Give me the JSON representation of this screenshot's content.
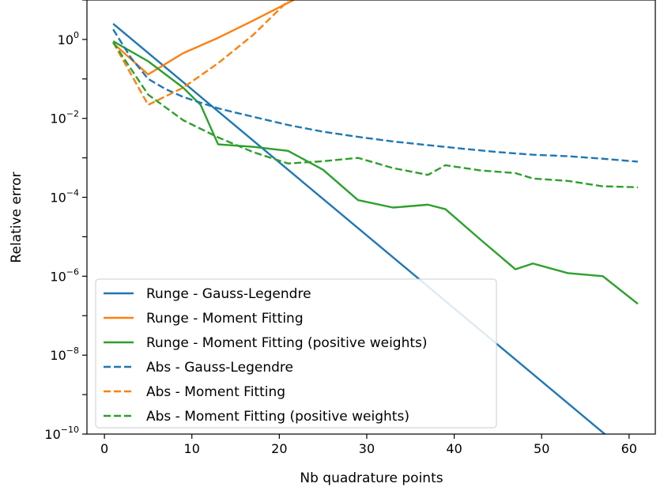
{
  "chart_data": {
    "type": "line",
    "title": "",
    "xlabel": "Nb quadrature points",
    "ylabel": "Relative error",
    "xlim": [
      -2,
      63
    ],
    "ylim_log10": [
      -10,
      1
    ],
    "yscale": "log",
    "xticks": [
      0,
      10,
      20,
      30,
      40,
      50,
      60
    ],
    "yticks_exponents": [
      -10,
      -8,
      -6,
      -4,
      -2,
      0
    ],
    "ytick_base": "10",
    "grid": false,
    "legend_position": "lower-left",
    "series": [
      {
        "name": "Runge - Gauss-Legendre",
        "color": "#1f77b4",
        "dash": "solid",
        "x": [
          1,
          61
        ],
        "y": [
          2.5,
          2e-11
        ]
      },
      {
        "name": "Runge - Moment Fitting",
        "color": "#ff7f0e",
        "dash": "solid",
        "x": [
          1,
          5,
          9,
          13,
          17,
          21,
          22
        ],
        "y": [
          0.8,
          0.13,
          0.45,
          1.1,
          3.0,
          8.5,
          11
        ]
      },
      {
        "name": "Runge - Moment Fitting (positive weights)",
        "color": "#2ca02c",
        "dash": "solid",
        "x": [
          1,
          5,
          9,
          11,
          13,
          17,
          21,
          25,
          29,
          33,
          37,
          39,
          43,
          47,
          49,
          53,
          57,
          61
        ],
        "y": [
          0.9,
          0.28,
          0.06,
          0.022,
          0.0022,
          0.0019,
          0.0015,
          0.0005,
          8.5e-05,
          5.5e-05,
          6.5e-05,
          5e-05,
          8.5e-06,
          1.5e-06,
          2.1e-06,
          1.2e-06,
          1e-06,
          2e-07
        ]
      },
      {
        "name": "Abs - Gauss-Legendre",
        "color": "#1f77b4",
        "dash": "dashed",
        "x": [
          1,
          3,
          5,
          7,
          9,
          11,
          13,
          15,
          17,
          21,
          25,
          29,
          33,
          37,
          41,
          45,
          49,
          53,
          57,
          61
        ],
        "y": [
          1.8,
          0.35,
          0.1,
          0.055,
          0.035,
          0.025,
          0.018,
          0.014,
          0.011,
          0.0068,
          0.0046,
          0.0034,
          0.0026,
          0.0021,
          0.0017,
          0.0014,
          0.0012,
          0.0011,
          0.00095,
          0.0008
        ]
      },
      {
        "name": "Abs - Moment Fitting",
        "color": "#ff7f0e",
        "dash": "dashed",
        "x": [
          1,
          5,
          9,
          13,
          17,
          21
        ],
        "y": [
          0.85,
          0.022,
          0.06,
          0.25,
          1.3,
          9.5
        ]
      },
      {
        "name": "Abs - Moment Fitting (positive weights)",
        "color": "#2ca02c",
        "dash": "dashed",
        "x": [
          1,
          5,
          9,
          13,
          17,
          21,
          25,
          29,
          33,
          37,
          39,
          43,
          47,
          49,
          53,
          57,
          61
        ],
        "y": [
          0.85,
          0.04,
          0.009,
          0.0033,
          0.0014,
          0.00072,
          0.00082,
          0.001,
          0.00055,
          0.00037,
          0.00065,
          0.00048,
          0.00041,
          0.0003,
          0.00026,
          0.00019,
          0.00018
        ]
      }
    ]
  }
}
